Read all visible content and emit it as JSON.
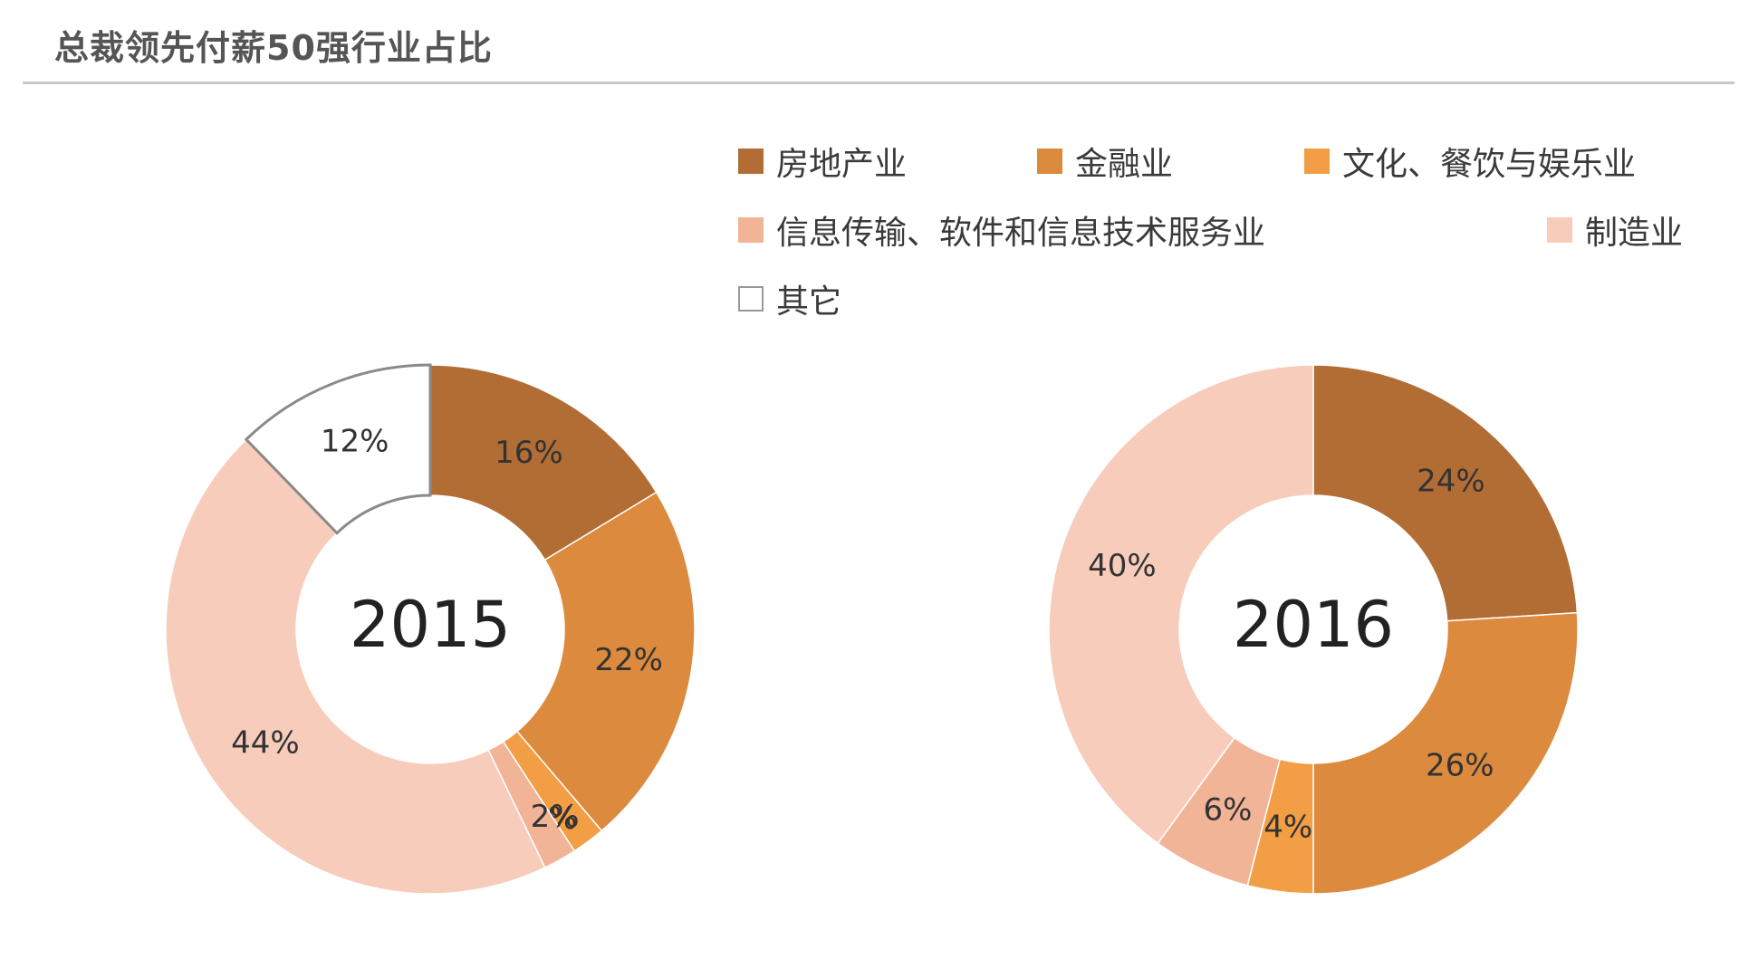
{
  "title": "总裁领先付薪50强行业占比",
  "chart_data": {
    "type": "pie",
    "legend_position": "top-right",
    "categories": [
      "房地产业",
      "金融业",
      "文化、餐饮与娱乐业",
      "信息传输、软件和信息技术服务业",
      "制造业",
      "其它"
    ],
    "colors": [
      "#b26d35",
      "#dc8a3e",
      "#f29e44",
      "#f2b496",
      "#f7ccbb",
      "#ffffff"
    ],
    "charts": [
      {
        "center_label": "2015",
        "values": [
          16,
          22,
          2,
          2,
          44,
          12
        ],
        "labels": [
          "16%",
          "22%",
          "2%",
          "2%",
          "44%",
          "12%"
        ]
      },
      {
        "center_label": "2016",
        "values": [
          24,
          26,
          4,
          6,
          40,
          0
        ],
        "labels": [
          "24%",
          "26%",
          "4%",
          "6%",
          "40%",
          ""
        ]
      }
    ]
  }
}
